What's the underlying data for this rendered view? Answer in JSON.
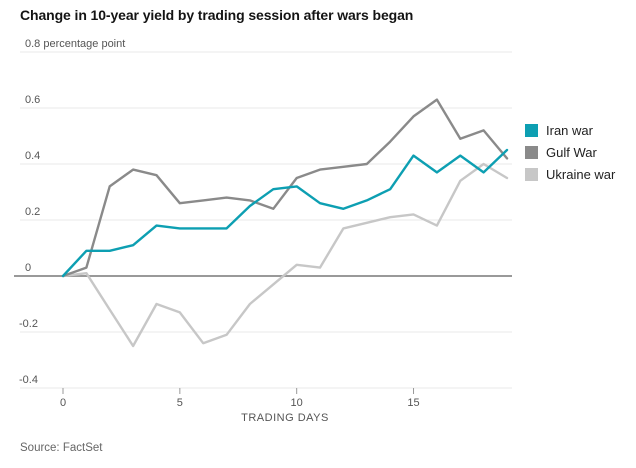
{
  "title": "Change in 10-year yield by trading session after wars began",
  "source": "Source: FactSet",
  "legend": {
    "items": [
      {
        "label": "Iran war",
        "color": "#0d9fb2"
      },
      {
        "label": "Gulf War",
        "color": "#8a8a8a"
      },
      {
        "label": "Ukraine war",
        "color": "#c7c7c7"
      }
    ]
  },
  "chart_data": {
    "type": "line",
    "title": "Change in 10-year yield by trading session after wars began",
    "xlabel": "TRADING DAYS",
    "ylabel": "percentage point",
    "unit_label": "0.8 percentage point",
    "xlim": [
      0,
      19
    ],
    "ylim": [
      -0.4,
      0.8
    ],
    "grid": true,
    "legend_position": "right",
    "x_ticks": [
      0,
      5,
      10,
      15
    ],
    "y_ticks": [
      {
        "value": 0.8,
        "label": "0.8 percentage point"
      },
      {
        "value": 0.6,
        "label": "0.6"
      },
      {
        "value": 0.4,
        "label": "0.4"
      },
      {
        "value": 0.2,
        "label": "0.2"
      },
      {
        "value": 0,
        "label": "0"
      },
      {
        "value": -0.2,
        "label": "-0.2"
      },
      {
        "value": -0.4,
        "label": "-0.4"
      }
    ],
    "x": [
      0,
      1,
      2,
      3,
      4,
      5,
      6,
      7,
      8,
      9,
      10,
      11,
      12,
      13,
      14,
      15,
      16,
      17,
      18,
      19
    ],
    "series": [
      {
        "name": "Ukraine war",
        "color": "#c7c7c7",
        "values": [
          0,
          0.01,
          -0.12,
          -0.25,
          -0.1,
          -0.13,
          -0.24,
          -0.21,
          -0.1,
          -0.03,
          0.04,
          0.03,
          0.17,
          0.19,
          0.21,
          0.22,
          0.18,
          0.34,
          0.4,
          0.35
        ]
      },
      {
        "name": "Gulf War",
        "color": "#8a8a8a",
        "values": [
          0,
          0.03,
          0.32,
          0.38,
          0.36,
          0.26,
          0.27,
          0.28,
          0.27,
          0.24,
          0.35,
          0.38,
          0.39,
          0.4,
          0.48,
          0.57,
          0.63,
          0.49,
          0.52,
          0.42
        ]
      },
      {
        "name": "Iran war",
        "color": "#0d9fb2",
        "values": [
          0,
          0.09,
          0.09,
          0.11,
          0.18,
          0.17,
          0.17,
          0.17,
          0.25,
          0.31,
          0.32,
          0.26,
          0.24,
          0.27,
          0.31,
          0.43,
          0.37,
          0.43,
          0.37,
          0.45
        ]
      }
    ],
    "zero_line_color": "#999999",
    "gridline_color": "#e9e9e9",
    "axis_text_color": "#555555"
  }
}
